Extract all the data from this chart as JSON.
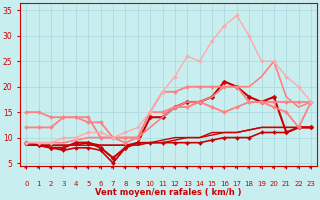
{
  "xlabel": "Vent moyen/en rafales ( km/h )",
  "xlabel_color": "#cc0000",
  "background_color": "#c8eef0",
  "grid_color": "#a8d8dc",
  "x_ticks": [
    0,
    1,
    2,
    3,
    4,
    5,
    6,
    7,
    8,
    9,
    10,
    11,
    12,
    13,
    14,
    15,
    16,
    17,
    18,
    19,
    20,
    21,
    22,
    23
  ],
  "ylim": [
    4.5,
    36.5
  ],
  "yticks": [
    5,
    10,
    15,
    20,
    25,
    30,
    35
  ],
  "lines": [
    {
      "x": [
        0,
        1,
        2,
        3,
        4,
        5,
        6,
        7,
        8,
        9,
        10,
        11,
        12,
        13,
        14,
        15,
        16,
        17,
        18,
        19,
        20,
        21,
        22,
        23
      ],
      "y": [
        8.5,
        8.5,
        8.5,
        8.5,
        8.5,
        8.5,
        8.5,
        8.5,
        8.5,
        8.5,
        9,
        9,
        9.5,
        10,
        10,
        10.5,
        11,
        11,
        11.5,
        12,
        12,
        12,
        12,
        12
      ],
      "color": "#cc0000",
      "linewidth": 1.0,
      "marker": null,
      "markersize": 0,
      "alpha": 1.0
    },
    {
      "x": [
        0,
        1,
        2,
        3,
        4,
        5,
        6,
        7,
        8,
        9,
        10,
        11,
        12,
        13,
        14,
        15,
        16,
        17,
        18,
        19,
        20,
        21,
        22,
        23
      ],
      "y": [
        8.5,
        8.5,
        8.5,
        8.5,
        8.5,
        9,
        8.5,
        8.5,
        8.5,
        9,
        9,
        9.5,
        10,
        10,
        10,
        11,
        11,
        11,
        11.5,
        12,
        12,
        12,
        12,
        12
      ],
      "color": "#cc0000",
      "linewidth": 1.0,
      "marker": null,
      "markersize": 0,
      "alpha": 1.0
    },
    {
      "x": [
        0,
        1,
        2,
        3,
        4,
        5,
        6,
        7,
        8,
        9,
        10,
        11,
        12,
        13,
        14,
        15,
        16,
        17,
        18,
        19,
        20,
        21,
        22,
        23
      ],
      "y": [
        9,
        8.5,
        8,
        7.5,
        8,
        8,
        7.5,
        5,
        8,
        9,
        9,
        9,
        9,
        9,
        9,
        9.5,
        10,
        10,
        10,
        11,
        11,
        11,
        12,
        12
      ],
      "color": "#cc0000",
      "linewidth": 1.2,
      "marker": "D",
      "markersize": 2.0,
      "alpha": 1.0
    },
    {
      "x": [
        0,
        1,
        2,
        3,
        4,
        5,
        6,
        7,
        8,
        9,
        10,
        11,
        12,
        13,
        14,
        15,
        16,
        17,
        18,
        19,
        20,
        21,
        22,
        23
      ],
      "y": [
        9,
        8.5,
        8,
        8,
        9,
        9,
        8,
        6,
        8,
        9,
        14,
        14,
        16,
        17,
        17,
        18,
        21,
        20,
        18,
        17,
        18,
        11,
        12,
        12
      ],
      "color": "#cc0000",
      "linewidth": 1.5,
      "marker": "D",
      "markersize": 2.5,
      "alpha": 1.0
    },
    {
      "x": [
        0,
        1,
        2,
        3,
        4,
        5,
        6,
        7,
        8,
        9,
        10,
        11,
        12,
        13,
        14,
        15,
        16,
        17,
        18,
        19,
        20,
        21,
        22,
        23
      ],
      "y": [
        9,
        9,
        9,
        9,
        9.5,
        10,
        10,
        10,
        10,
        10,
        12,
        14,
        16,
        17,
        17,
        18,
        20,
        20,
        20,
        22,
        25,
        18,
        16,
        17
      ],
      "color": "#ff8080",
      "linewidth": 1.2,
      "marker": null,
      "markersize": 0,
      "alpha": 1.0
    },
    {
      "x": [
        0,
        1,
        2,
        3,
        4,
        5,
        6,
        7,
        8,
        9,
        10,
        11,
        12,
        13,
        14,
        15,
        16,
        17,
        18,
        19,
        20,
        21,
        22,
        23
      ],
      "y": [
        12,
        12,
        12,
        14,
        14,
        14,
        10,
        10,
        9,
        10,
        15,
        15,
        16,
        16,
        17,
        16,
        15,
        16,
        17,
        17,
        16,
        15,
        12,
        17
      ],
      "color": "#ff8080",
      "linewidth": 1.3,
      "marker": "D",
      "markersize": 2.0,
      "alpha": 1.0
    },
    {
      "x": [
        0,
        1,
        2,
        3,
        4,
        5,
        6,
        7,
        8,
        9,
        10,
        11,
        12,
        13,
        14,
        15,
        16,
        17,
        18,
        19,
        20,
        21,
        22,
        23
      ],
      "y": [
        15,
        15,
        14,
        14,
        14,
        13,
        13,
        10,
        10,
        10,
        15,
        19,
        19,
        20,
        20,
        20,
        20,
        20,
        17,
        17,
        17,
        17,
        17,
        17
      ],
      "color": "#ff8080",
      "linewidth": 1.3,
      "marker": "D",
      "markersize": 2.0,
      "alpha": 1.0
    },
    {
      "x": [
        0,
        1,
        2,
        3,
        4,
        5,
        6,
        7,
        8,
        9,
        10,
        11,
        12,
        13,
        14,
        15,
        16,
        17,
        18,
        19,
        20,
        21,
        22,
        23
      ],
      "y": [
        9,
        9,
        9,
        10,
        10,
        11,
        11,
        10,
        11,
        12,
        15,
        19,
        22,
        26,
        25,
        29,
        32,
        34,
        30,
        25,
        25,
        22,
        20,
        17
      ],
      "color": "#ffaaaa",
      "linewidth": 1.0,
      "marker": "D",
      "markersize": 2.0,
      "alpha": 1.0
    }
  ]
}
